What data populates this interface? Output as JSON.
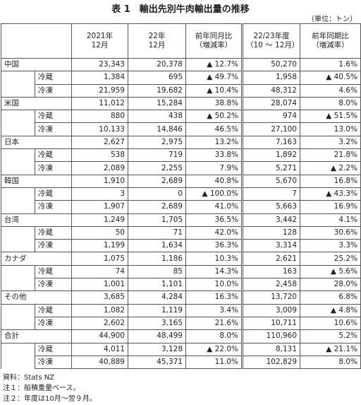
{
  "header": {
    "title": "表 1　輸出先別牛肉輸出量の推移",
    "unit": "（単位：トン）"
  },
  "table": {
    "columns": [
      "2021年\n12月",
      "22年\n12月",
      "前年同月比\n（増減率）",
      "22/23年度\n（10 ～ 12月）",
      "前年同期比\n（増減率）"
    ],
    "groups": [
      {
        "name": "中国",
        "values": [
          "23,343",
          "20,378",
          "▲ 12.7%",
          "50,270",
          "1.6%"
        ],
        "rows": [
          {
            "name": "冷蔵",
            "values": [
              "1,384",
              "695",
              "▲ 49.7%",
              "1,958",
              "▲ 40.5%"
            ]
          },
          {
            "name": "冷凍",
            "values": [
              "21,959",
              "19,682",
              "▲ 10.4%",
              "48,312",
              "4.6%"
            ]
          }
        ]
      },
      {
        "name": "米国",
        "values": [
          "11,012",
          "15,284",
          "38.8%",
          "28,074",
          "8.0%"
        ],
        "rows": [
          {
            "name": "冷蔵",
            "values": [
              "880",
              "438",
              "▲ 50.2%",
              "974",
              "▲ 51.5%"
            ]
          },
          {
            "name": "冷凍",
            "values": [
              "10,133",
              "14,846",
              "46.5%",
              "27,100",
              "13.0%"
            ]
          }
        ]
      },
      {
        "name": "日本",
        "values": [
          "2,627",
          "2,975",
          "13.2%",
          "7,163",
          "3.2%"
        ],
        "rows": [
          {
            "name": "冷蔵",
            "values": [
              "538",
              "719",
              "33.8%",
              "1,892",
              "21.8%"
            ]
          },
          {
            "name": "冷凍",
            "values": [
              "2,089",
              "2,255",
              "7.9%",
              "5,271",
              "▲ 2.2%"
            ]
          }
        ]
      },
      {
        "name": "韓国",
        "values": [
          "1,910",
          "2,689",
          "40.8%",
          "5,670",
          "16.8%"
        ],
        "rows": [
          {
            "name": "冷蔵",
            "values": [
              "3",
              "0",
              "▲ 100.0%",
              "7",
              "▲ 43.3%"
            ]
          },
          {
            "name": "冷凍",
            "values": [
              "1,907",
              "2,689",
              "41.0%",
              "5,663",
              "16.9%"
            ]
          }
        ]
      },
      {
        "name": "台湾",
        "values": [
          "1,249",
          "1,705",
          "36.5%",
          "3,442",
          "4.1%"
        ],
        "rows": [
          {
            "name": "冷蔵",
            "values": [
              "50",
              "71",
              "42.0%",
              "128",
              "30.6%"
            ]
          },
          {
            "name": "冷凍",
            "values": [
              "1,199",
              "1,634",
              "36.3%",
              "3,314",
              "3.3%"
            ]
          }
        ]
      },
      {
        "name": "カナダ",
        "values": [
          "1,075",
          "1,186",
          "10.3%",
          "2,621",
          "25.2%"
        ],
        "rows": [
          {
            "name": "冷蔵",
            "values": [
              "74",
              "85",
              "14.3%",
              "163",
              "▲ 5.6%"
            ]
          },
          {
            "name": "冷凍",
            "values": [
              "1,001",
              "1,101",
              "10.0%",
              "2,458",
              "28.0%"
            ]
          }
        ]
      },
      {
        "name": "その他",
        "values": [
          "3,685",
          "4,284",
          "16.3%",
          "13,720",
          "6.8%"
        ],
        "rows": [
          {
            "name": "冷蔵",
            "values": [
              "1,082",
              "1,119",
              "3.4%",
              "3,009",
              "▲ 4.8%"
            ]
          },
          {
            "name": "冷凍",
            "values": [
              "2,602",
              "3,165",
              "21.6%",
              "10,711",
              "10.6%"
            ]
          }
        ]
      },
      {
        "name": "合計",
        "values": [
          "44,900",
          "48,499",
          "8.0%",
          "110,960",
          "5.2%"
        ],
        "rows": [
          {
            "name": "冷蔵",
            "values": [
              "4,011",
              "3,128",
              "▲ 22.0%",
              "8,131",
              "▲ 21.1%"
            ]
          },
          {
            "name": "冷凍",
            "values": [
              "40,889",
              "45,371",
              "11.0%",
              "102,829",
              "8.0%"
            ]
          }
        ]
      }
    ]
  },
  "notes": [
    "資料：Stats NZ",
    "注１：船積重量ベース。",
    "注２：年度は10月～翌９月。"
  ]
}
